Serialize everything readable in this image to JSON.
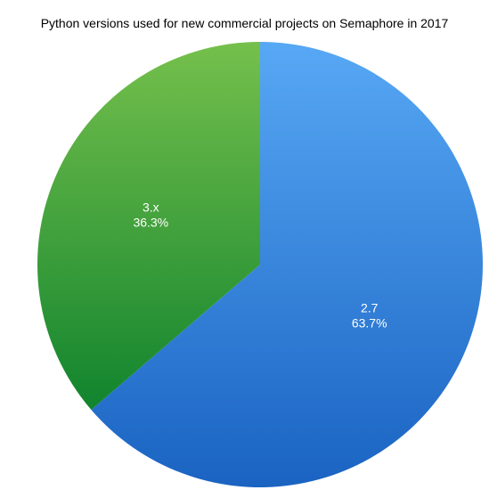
{
  "chart_data": {
    "type": "pie",
    "title": "Python versions used for new commercial projects on Semaphore in 2017",
    "slices": [
      {
        "label": "2.7",
        "value": 63.7,
        "percent_label": "63.7%",
        "color_top": "#57a8f5",
        "color_bottom": "#1a63c2"
      },
      {
        "label": "3.x",
        "value": 36.3,
        "percent_label": "36.3%",
        "color_top": "#75c04c",
        "color_bottom": "#11842e"
      }
    ]
  }
}
